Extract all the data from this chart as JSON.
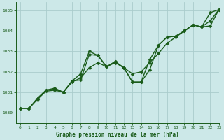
{
  "title": "Graphe pression niveau de la mer (hPa)",
  "bg_color": "#cce8e8",
  "grid_color": "#aacccc",
  "line_color": "#1a5c1a",
  "xlim": [
    -0.5,
    23
  ],
  "ylim": [
    1029.5,
    1035.4
  ],
  "yticks": [
    1030,
    1031,
    1032,
    1033,
    1034,
    1035
  ],
  "xticks": [
    0,
    1,
    2,
    3,
    4,
    5,
    6,
    7,
    8,
    9,
    10,
    11,
    12,
    13,
    14,
    15,
    16,
    17,
    18,
    19,
    20,
    21,
    22,
    23
  ],
  "series1_x": [
    0,
    1,
    2,
    3,
    4,
    5,
    6,
    7,
    8,
    9,
    10,
    11,
    12,
    13,
    14,
    15,
    16,
    17,
    18,
    19,
    20,
    21,
    22,
    23
  ],
  "series1_y": [
    1030.2,
    1030.2,
    1030.7,
    1031.1,
    1031.15,
    1031.0,
    1031.55,
    1031.6,
    1032.85,
    1032.8,
    1032.25,
    1032.5,
    1032.2,
    1031.5,
    1031.5,
    1032.6,
    1033.3,
    1033.7,
    1033.75,
    1034.0,
    1034.3,
    1034.2,
    1034.9,
    1035.05
  ],
  "series2_x": [
    0,
    1,
    2,
    3,
    4,
    5,
    6,
    7,
    8,
    9,
    10,
    11,
    12,
    13,
    14,
    15,
    16,
    17,
    18,
    19,
    20,
    21,
    22,
    23
  ],
  "series2_y": [
    1030.2,
    1030.2,
    1030.7,
    1031.1,
    1031.2,
    1031.0,
    1031.55,
    1031.9,
    1033.0,
    1032.8,
    1032.25,
    1032.5,
    1032.2,
    1031.5,
    1031.5,
    1032.1,
    1033.3,
    1033.7,
    1033.75,
    1034.0,
    1034.3,
    1034.2,
    1034.25,
    1035.05
  ],
  "series3_x": [
    0,
    1,
    2,
    3,
    4,
    5,
    6,
    7,
    8,
    9,
    10,
    11,
    12,
    13,
    14,
    15,
    16,
    17,
    18,
    19,
    20,
    21,
    22,
    23
  ],
  "series3_y": [
    1030.2,
    1030.2,
    1030.65,
    1031.05,
    1031.1,
    1031.0,
    1031.5,
    1031.7,
    1032.2,
    1032.45,
    1032.25,
    1032.45,
    1032.2,
    1031.9,
    1032.0,
    1032.45,
    1032.9,
    1033.4,
    1033.7,
    1034.0,
    1034.3,
    1034.2,
    1034.5,
    1035.05
  ],
  "marker_size": 2.5,
  "line_width": 1.0
}
